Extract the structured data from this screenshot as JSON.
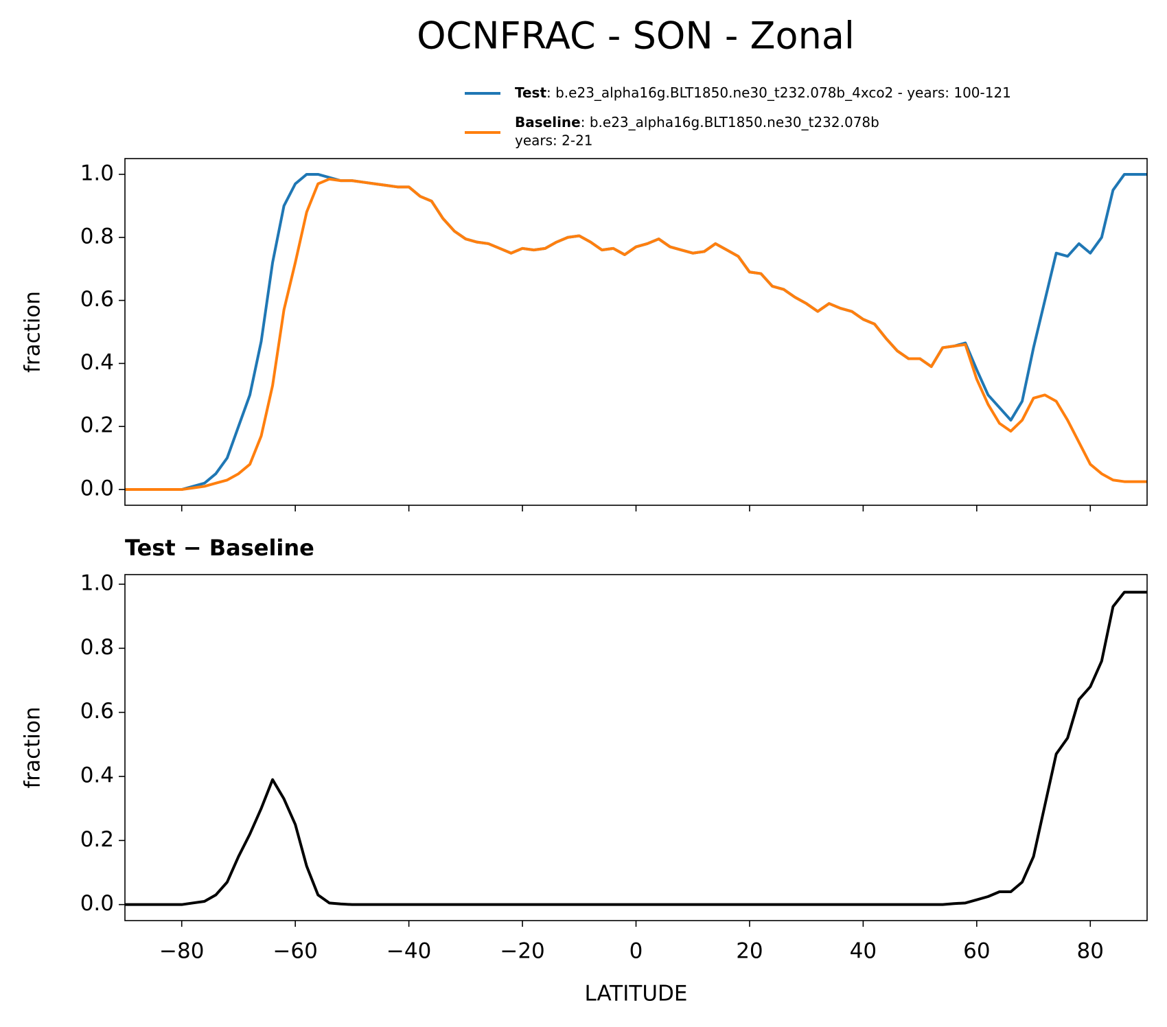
{
  "title": "OCNFRAC - SON - Zonal",
  "chart_data": [
    {
      "type": "line",
      "ylabel": "fraction",
      "x": [
        -90,
        -88,
        -86,
        -84,
        -82,
        -80,
        -78,
        -76,
        -74,
        -72,
        -70,
        -68,
        -66,
        -64,
        -62,
        -60,
        -58,
        -56,
        -54,
        -52,
        -50,
        -48,
        -46,
        -44,
        -42,
        -40,
        -38,
        -36,
        -34,
        -32,
        -30,
        -28,
        -26,
        -24,
        -22,
        -20,
        -18,
        -16,
        -14,
        -12,
        -10,
        -8,
        -6,
        -4,
        -2,
        0,
        2,
        4,
        6,
        8,
        10,
        12,
        14,
        16,
        18,
        20,
        22,
        24,
        26,
        28,
        30,
        32,
        34,
        36,
        38,
        40,
        42,
        44,
        46,
        48,
        50,
        52,
        54,
        56,
        58,
        60,
        62,
        64,
        66,
        68,
        70,
        72,
        74,
        76,
        78,
        80,
        82,
        84,
        86,
        88,
        90
      ],
      "series": [
        {
          "name": "Test",
          "description": [
            ": b.e23_alpha16g.BLT1850.ne30_t232.078b_4xco2 - years: 100-121"
          ],
          "color": "#1f77b4",
          "values": [
            0,
            0,
            0,
            0,
            0,
            0,
            0.01,
            0.02,
            0.05,
            0.1,
            0.2,
            0.3,
            0.47,
            0.72,
            0.9,
            0.97,
            1.0,
            1.0,
            0.99,
            0.98,
            0.98,
            0.975,
            0.97,
            0.965,
            0.96,
            0.96,
            0.93,
            0.915,
            0.86,
            0.82,
            0.795,
            0.785,
            0.78,
            0.765,
            0.75,
            0.765,
            0.76,
            0.765,
            0.785,
            0.8,
            0.805,
            0.785,
            0.76,
            0.765,
            0.745,
            0.77,
            0.78,
            0.795,
            0.77,
            0.76,
            0.75,
            0.755,
            0.78,
            0.76,
            0.74,
            0.69,
            0.685,
            0.645,
            0.635,
            0.61,
            0.59,
            0.565,
            0.59,
            0.575,
            0.565,
            0.54,
            0.525,
            0.48,
            0.44,
            0.415,
            0.415,
            0.39,
            0.45,
            0.455,
            0.465,
            0.38,
            0.3,
            0.26,
            0.22,
            0.28,
            0.45,
            0.6,
            0.75,
            0.74,
            0.78,
            0.75,
            0.8,
            0.95,
            1.0,
            1.0,
            1.0
          ]
        },
        {
          "name": "Baseline",
          "description": [
            ": b.e23_alpha16g.BLT1850.ne30_t232.078b",
            "years: 2-21"
          ],
          "color": "#ff7f0e",
          "values": [
            0,
            0,
            0,
            0,
            0,
            0,
            0.005,
            0.01,
            0.02,
            0.03,
            0.05,
            0.08,
            0.17,
            0.33,
            0.57,
            0.72,
            0.88,
            0.97,
            0.985,
            0.98,
            0.98,
            0.975,
            0.97,
            0.965,
            0.96,
            0.96,
            0.93,
            0.915,
            0.86,
            0.82,
            0.795,
            0.785,
            0.78,
            0.765,
            0.75,
            0.765,
            0.76,
            0.765,
            0.785,
            0.8,
            0.805,
            0.785,
            0.76,
            0.765,
            0.745,
            0.77,
            0.78,
            0.795,
            0.77,
            0.76,
            0.75,
            0.755,
            0.78,
            0.76,
            0.74,
            0.69,
            0.685,
            0.645,
            0.635,
            0.61,
            0.59,
            0.565,
            0.59,
            0.575,
            0.565,
            0.54,
            0.525,
            0.48,
            0.44,
            0.415,
            0.415,
            0.39,
            0.45,
            0.455,
            0.46,
            0.35,
            0.27,
            0.21,
            0.185,
            0.22,
            0.29,
            0.3,
            0.28,
            0.22,
            0.15,
            0.08,
            0.05,
            0.03,
            0.025,
            0.025,
            0.025
          ]
        }
      ],
      "xlim": [
        -90,
        90
      ],
      "ylim": [
        -0.05,
        1.05
      ],
      "yticks": [
        {
          "value": 0,
          "label": "0.0"
        },
        0.2,
        0.4,
        0.6,
        0.8,
        {
          "value": 1,
          "label": "1.0"
        }
      ]
    },
    {
      "type": "line",
      "title": "Test − Baseline",
      "ylabel": "fraction",
      "xlabel": "LATITUDE",
      "x": [
        -90,
        -88,
        -86,
        -84,
        -82,
        -80,
        -78,
        -76,
        -74,
        -72,
        -70,
        -68,
        -66,
        -64,
        -62,
        -60,
        -58,
        -56,
        -54,
        -52,
        -50,
        -48,
        -46,
        -44,
        -42,
        -40,
        -38,
        -36,
        -34,
        -32,
        -30,
        -28,
        -26,
        -24,
        -22,
        -20,
        -18,
        -16,
        -14,
        -12,
        -10,
        -8,
        -6,
        -4,
        -2,
        0,
        2,
        4,
        6,
        8,
        10,
        12,
        14,
        16,
        18,
        20,
        22,
        24,
        26,
        28,
        30,
        32,
        34,
        36,
        38,
        40,
        42,
        44,
        46,
        48,
        50,
        52,
        54,
        56,
        58,
        60,
        62,
        64,
        66,
        68,
        70,
        72,
        74,
        76,
        78,
        80,
        82,
        84,
        86,
        88,
        90
      ],
      "series": [
        {
          "color": "#000000",
          "values": [
            0,
            0,
            0,
            0,
            0,
            0,
            0.005,
            0.01,
            0.03,
            0.07,
            0.15,
            0.22,
            0.3,
            0.39,
            0.33,
            0.25,
            0.12,
            0.03,
            0.005,
            0.002,
            0,
            0,
            0,
            0,
            0,
            0,
            0,
            0,
            0,
            0,
            0,
            0,
            0,
            0,
            0,
            0,
            0,
            0,
            0,
            0,
            0,
            0,
            0,
            0,
            0,
            0,
            0,
            0,
            0,
            0,
            0,
            0,
            0,
            0,
            0,
            0,
            0,
            0,
            0,
            0,
            0,
            0,
            0,
            0,
            0,
            0,
            0,
            0,
            0,
            0,
            0,
            0,
            0,
            0.003,
            0.005,
            0.015,
            0.025,
            0.04,
            0.04,
            0.07,
            0.15,
            0.31,
            0.47,
            0.52,
            0.64,
            0.68,
            0.76,
            0.93,
            0.975,
            0.975,
            0.975
          ]
        }
      ],
      "xlim": [
        -90,
        90
      ],
      "ylim": [
        -0.05,
        1.03
      ],
      "xticks": [
        {
          "value": -80,
          "label": "−80"
        },
        {
          "value": -60,
          "label": "−60"
        },
        {
          "value": -40,
          "label": "−40"
        },
        {
          "value": -20,
          "label": "−20"
        },
        0,
        20,
        40,
        60,
        80
      ],
      "yticks": [
        {
          "value": 0,
          "label": "0.0"
        },
        0.2,
        0.4,
        0.6,
        0.8,
        {
          "value": 1,
          "label": "1.0"
        }
      ]
    }
  ]
}
